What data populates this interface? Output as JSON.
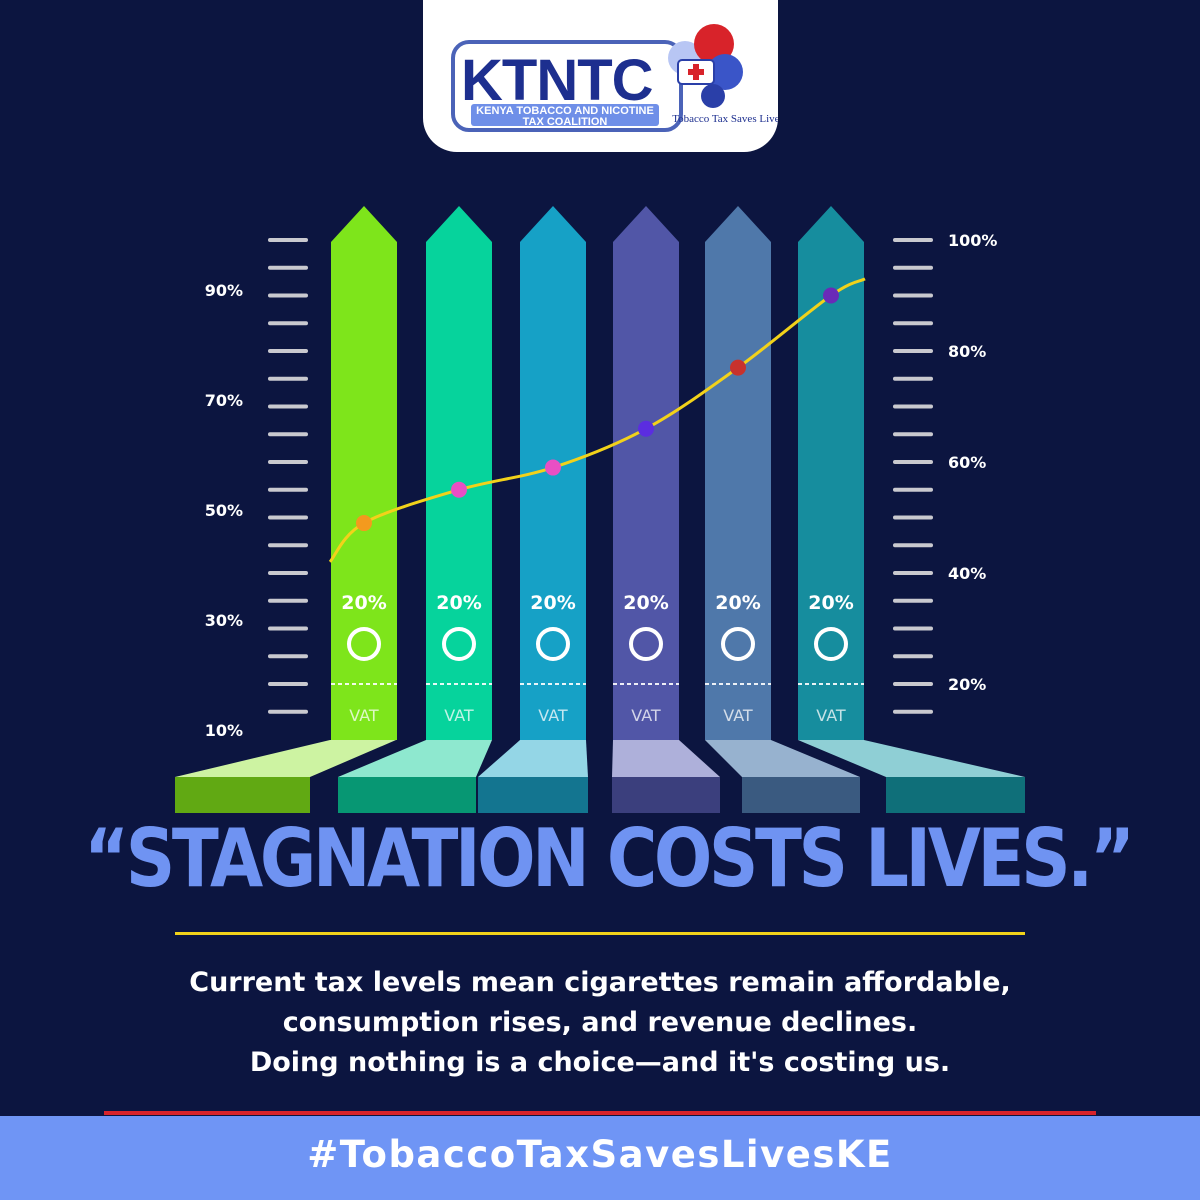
{
  "logo": {
    "acronym": "KTNTC",
    "org_name_line1": "KENYA TOBACCO AND NICOTINE",
    "org_name_line2": "TAX COALITION",
    "tagline": "Tobacco Tax Saves Lives"
  },
  "colors": {
    "background": "#0c1540",
    "accent_blue": "#6f93f2",
    "curve": "#f2d21a",
    "footer": "#6f95f5",
    "rule_red": "#d8232a"
  },
  "chart_data": {
    "type": "bar",
    "categories": [
      "",
      "",
      "",
      "",
      "",
      ""
    ],
    "bar_labels": [
      "20%",
      "20%",
      "20%",
      "20%",
      "20%",
      "20%"
    ],
    "bar_base_label": "VAT",
    "bar_colors": [
      "#7ee51b",
      "#06d39c",
      "#16a1c6",
      "#5156a7",
      "#4f78aa",
      "#168d9e"
    ],
    "bar_3d_colors": [
      {
        "top": "#cdf3a2",
        "front": "#61a913"
      },
      {
        "top": "#8ee8cf",
        "front": "#079773"
      },
      {
        "top": "#94d6e6",
        "front": "#137590"
      },
      {
        "top": "#aeb0da",
        "front": "#3b3f7d"
      },
      {
        "top": "#97b2cf",
        "front": "#3a5a80"
      },
      {
        "top": "#8fcfd5",
        "front": "#0f6f79"
      }
    ],
    "left_axis_ticks": [
      "10%",
      "30%",
      "50%",
      "70%",
      "90%"
    ],
    "right_axis_ticks": [
      "20%",
      "40%",
      "60%",
      "80%",
      "100%"
    ],
    "right_ylim": [
      10,
      100
    ],
    "series": [
      {
        "type": "line",
        "axis": "right",
        "values": [
          49,
          55,
          59,
          66,
          77,
          90
        ],
        "start_value": 42,
        "end_value": 93,
        "point_colors": [
          "#f39a1e",
          "#e84fc4",
          "#e84fc4",
          "#5b2de0",
          "#c8322d",
          "#6a2ab8"
        ]
      }
    ]
  },
  "slogan": "“STAGNATION COSTS LIVES.”",
  "body_text": [
    "Current tax levels mean cigarettes remain affordable,",
    "consumption rises, and revenue declines.",
    "Doing nothing is a choice—and it's costing us."
  ],
  "hashtag": "#TobaccoTaxSavesLivesKE"
}
